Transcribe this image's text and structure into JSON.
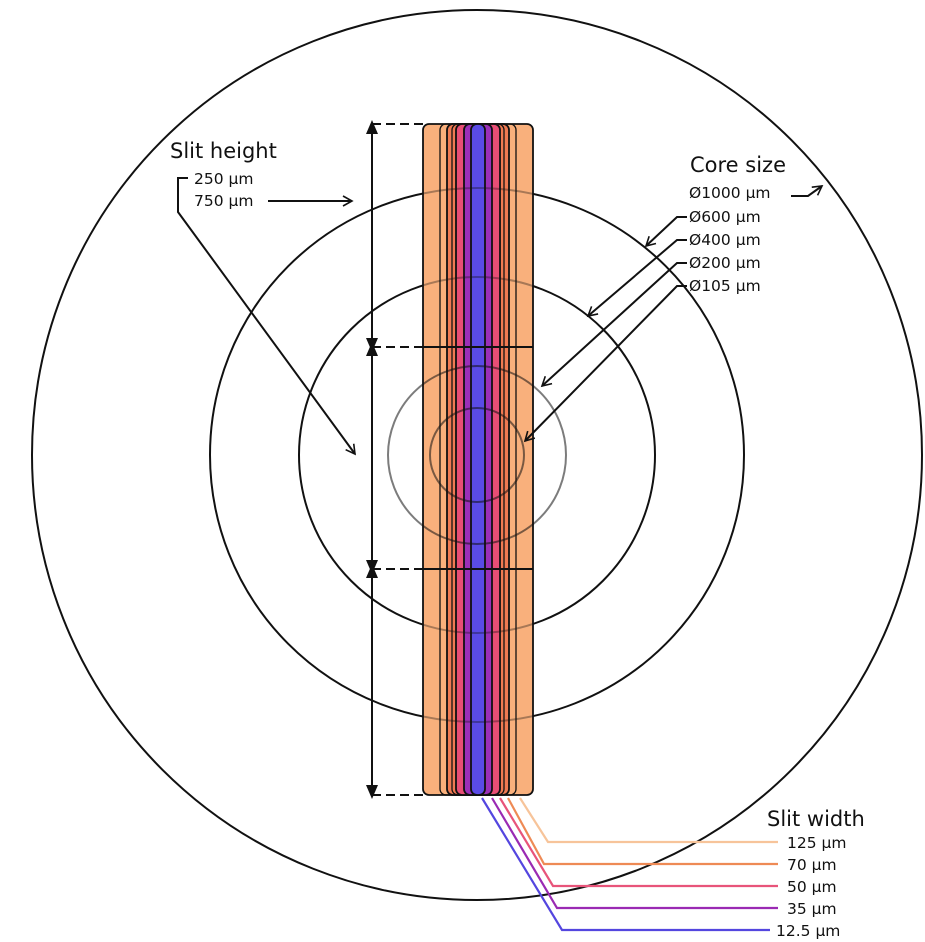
{
  "slit_height": {
    "title": "Slit height",
    "items": [
      "250 µm",
      "750 µm"
    ]
  },
  "core_size": {
    "title": "Core size",
    "items": [
      "Ø1000 µm",
      "Ø600 µm",
      "Ø400 µm",
      "Ø200 µm",
      "Ø105 µm"
    ]
  },
  "slit_width": {
    "title": "Slit width",
    "items": [
      {
        "label": "125 µm",
        "color": "#f7c49a"
      },
      {
        "label": "70 µm",
        "color": "#ee8a55"
      },
      {
        "label": "50 µm",
        "color": "#e8547a"
      },
      {
        "label": "35 µm",
        "color": "#9a2ab3"
      },
      {
        "label": "12.5 µm",
        "color": "#5446df"
      }
    ]
  },
  "colors": {
    "slit_fill_outer": "#f9b07c",
    "slit_125": "#f9b07c",
    "slit_70": "#f07a52",
    "slit_50": "#e84e75",
    "slit_35": "#9b2fb8",
    "slit_12_5": "#5a4be6",
    "line": "#111111"
  }
}
